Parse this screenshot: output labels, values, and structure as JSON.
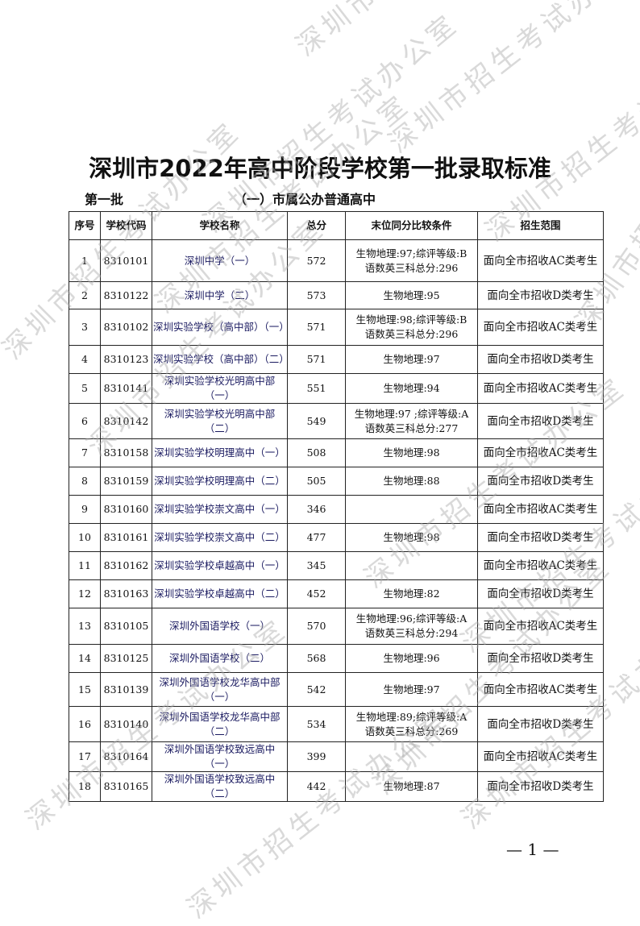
{
  "title": "深圳市2022年高中阶段学校第一批录取标准",
  "batch": "第一批",
  "section": "（一）市属公办普通高中",
  "watermark": "深圳市招生考试办公室",
  "columns": [
    "序号",
    "学校代码",
    "学校名称",
    "总分",
    "末位同分比较条件",
    "招生范围"
  ],
  "rows": [
    {
      "no": "1",
      "code": "8310101",
      "name": "深圳中学（一）",
      "score": "572",
      "cond": [
        "生物地理:97;综评等级:B",
        "语数英三科总分:296"
      ],
      "scope": "面向全市招收AC类考生"
    },
    {
      "no": "2",
      "code": "8310122",
      "name": "深圳中学（二）",
      "score": "573",
      "cond": [
        "生物地理:95"
      ],
      "scope": "面向全市招收D类考生"
    },
    {
      "no": "3",
      "code": "8310102",
      "name": "深圳实验学校（高中部）（一）",
      "score": "571",
      "cond": [
        "生物地理:98;综评等级:B",
        "语数英三科总分:296"
      ],
      "scope": "面向全市招收AC类考生"
    },
    {
      "no": "4",
      "code": "8310123",
      "name": "深圳实验学校（高中部）（二）",
      "score": "571",
      "cond": [
        "生物地理:97"
      ],
      "scope": "面向全市招收D类考生"
    },
    {
      "no": "5",
      "code": "8310141",
      "name": "深圳实验学校光明高中部（一）",
      "score": "551",
      "cond": [
        "生物地理:94"
      ],
      "scope": "面向全市招收AC类考生"
    },
    {
      "no": "6",
      "code": "8310142",
      "name": "深圳实验学校光明高中部（二）",
      "score": "549",
      "cond": [
        "生物地理:97 ;综评等级:A",
        "语数英三科总分:277"
      ],
      "scope": "面向全市招收D类考生"
    },
    {
      "no": "7",
      "code": "8310158",
      "name": "深圳实验学校明理高中（一）",
      "score": "508",
      "cond": [
        "生物地理:98"
      ],
      "scope": "面向全市招收AC类考生"
    },
    {
      "no": "8",
      "code": "8310159",
      "name": "深圳实验学校明理高中（二）",
      "score": "505",
      "cond": [
        "生物地理:88"
      ],
      "scope": "面向全市招收D类考生"
    },
    {
      "no": "9",
      "code": "8310160",
      "name": "深圳实验学校崇文高中（一）",
      "score": "346",
      "cond": [],
      "scope": "面向全市招收AC类考生"
    },
    {
      "no": "10",
      "code": "8310161",
      "name": "深圳实验学校崇文高中（二）",
      "score": "477",
      "cond": [
        "生物地理:98"
      ],
      "scope": "面向全市招收D类考生"
    },
    {
      "no": "11",
      "code": "8310162",
      "name": "深圳实验学校卓越高中（一）",
      "score": "345",
      "cond": [],
      "scope": "面向全市招收AC类考生"
    },
    {
      "no": "12",
      "code": "8310163",
      "name": "深圳实验学校卓越高中（二）",
      "score": "452",
      "cond": [
        "生物地理:82"
      ],
      "scope": "面向全市招收D类考生"
    },
    {
      "no": "13",
      "code": "8310105",
      "name": "深圳外国语学校（一）",
      "score": "570",
      "cond": [
        "生物地理:96;综评等级:A",
        "语数英三科总分:294"
      ],
      "scope": "面向全市招收AC类考生"
    },
    {
      "no": "14",
      "code": "8310125",
      "name": "深圳外国语学校（二）",
      "score": "568",
      "cond": [
        "生物地理:96"
      ],
      "scope": "面向全市招收D类考生"
    },
    {
      "no": "15",
      "code": "8310139",
      "name": "深圳外国语学校龙华高中部（一）",
      "score": "542",
      "cond": [
        "生物地理:97"
      ],
      "scope": "面向全市招收AC类考生"
    },
    {
      "no": "16",
      "code": "8310140",
      "name": "深圳外国语学校龙华高中部（二）",
      "score": "534",
      "cond": [
        "生物地理:89;综评等级:A",
        "语数英三科总分:269"
      ],
      "scope": "面向全市招收D类考生"
    },
    {
      "no": "17",
      "code": "8310164",
      "name": "深圳外国语学校致远高中（一）",
      "score": "399",
      "cond": [],
      "scope": "面向全市招收AC类考生"
    },
    {
      "no": "18",
      "code": "8310165",
      "name": "深圳外国语学校致远高中（二）",
      "score": "442",
      "cond": [
        "生物地理:87"
      ],
      "scope": "面向全市招收D类考生"
    }
  ],
  "page_number": "— 1 —"
}
